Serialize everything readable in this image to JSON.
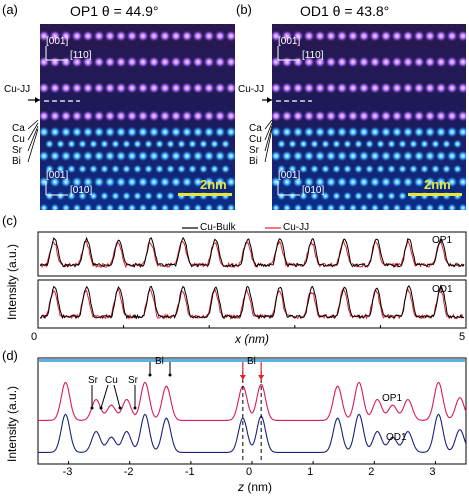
{
  "panel_a": {
    "label": "(a)",
    "title": "OP1 θ = 44.9°",
    "dir_top_v": "[001]",
    "dir_top_h": "[110]",
    "dir_bot_v": "[001]",
    "dir_bot_h": "[010]",
    "scale": "2nm",
    "cujj": "Cu-JJ",
    "ca": "Ca",
    "cu": "Cu",
    "sr": "Sr",
    "bi": "Bi"
  },
  "panel_b": {
    "label": "(b)",
    "title": "OD1 θ = 43.8°",
    "dir_top_v": "[001]",
    "dir_top_h": "[110]",
    "dir_bot_v": "[001]",
    "dir_bot_h": "[010]",
    "scale": "2nm",
    "cujj": "Cu-JJ",
    "ca": "Ca",
    "cu": "Cu",
    "sr": "Sr",
    "bi": "Bi"
  },
  "panel_c": {
    "label": "(c)",
    "legend_bulk": "Cu-Bulk",
    "legend_jj": "Cu-JJ",
    "tag_top": "OP1",
    "tag_bot": "OD1",
    "ylabel": "Intensity (a.u.)",
    "xlabel": "x (nm)",
    "tick_0": "0",
    "tick_5": "5"
  },
  "panel_d": {
    "label": "(d)",
    "ylabel": "Intensity (a.u.)",
    "xlabel": "z (nm)",
    "ann_sr1": "Sr",
    "ann_cu": "Cu",
    "ann_sr2": "Sr",
    "ann_bi1": "Bi",
    "ann_bi2": "Bi",
    "tag_op1": "OP1",
    "tag_od1": "OD1",
    "ticks": [
      "-3",
      "-2",
      "-1",
      "0",
      "1",
      "2",
      "3"
    ]
  },
  "colors": {
    "bulk": "#000000",
    "jj": "#e0202a",
    "op1": "#d81b60",
    "od1": "#1a237e"
  },
  "chart_data": [
    {
      "type": "line",
      "title": "",
      "xlabel": "x (nm)",
      "ylabel": "Intensity (a.u.)",
      "xlim": [
        0,
        5
      ],
      "series": [
        {
          "name": "Cu-Bulk"
        },
        {
          "name": "Cu-JJ"
        }
      ],
      "subplots": [
        "OP1",
        "OD1"
      ],
      "period_nm": 0.38
    },
    {
      "type": "line",
      "title": "",
      "xlabel": "z (nm)",
      "ylabel": "Intensity (a.u.)",
      "xlim": [
        -3.5,
        3.5
      ],
      "series": [
        {
          "name": "OP1"
        },
        {
          "name": "OD1"
        }
      ]
    }
  ]
}
